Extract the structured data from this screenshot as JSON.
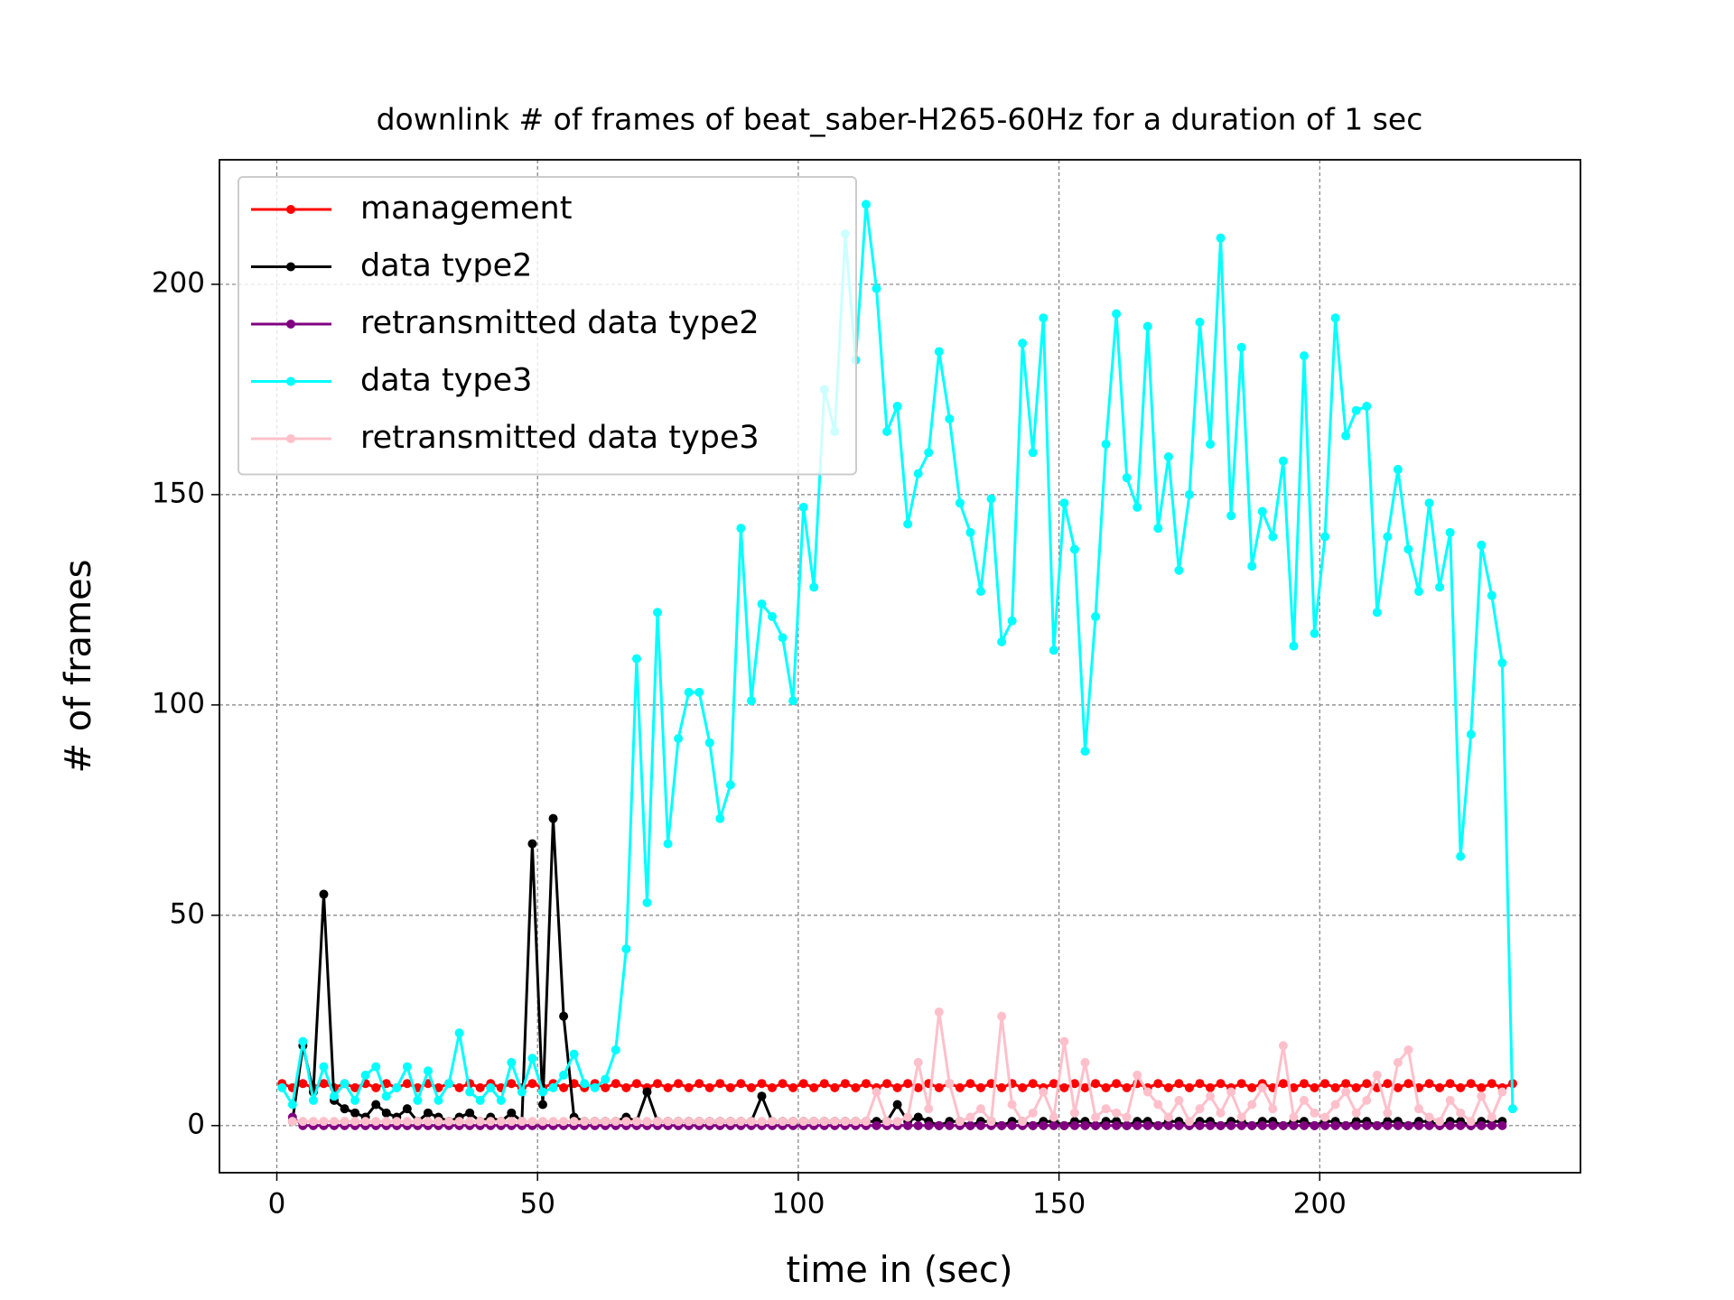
{
  "chart_data": {
    "type": "line",
    "title": "downlink # of frames of beat_saber-H265-60Hz for a duration of 1 sec",
    "xlabel": "time in (sec)",
    "ylabel": "# of frames",
    "xlim": [
      -11,
      250
    ],
    "ylim": [
      -11.2,
      229.6
    ],
    "xticks": [
      0,
      50,
      100,
      150,
      200
    ],
    "yticks": [
      0,
      50,
      100,
      150,
      200
    ],
    "grid": true,
    "legend": "upper left",
    "x": [
      1,
      3,
      5,
      7,
      9,
      11,
      13,
      15,
      17,
      19,
      21,
      23,
      25,
      27,
      29,
      31,
      33,
      35,
      37,
      39,
      41,
      43,
      45,
      47,
      49,
      51,
      53,
      55,
      57,
      59,
      61,
      63,
      65,
      67,
      69,
      71,
      73,
      75,
      77,
      79,
      81,
      83,
      85,
      87,
      89,
      91,
      93,
      95,
      97,
      99,
      101,
      103,
      105,
      107,
      109,
      111,
      113,
      115,
      117,
      119,
      121,
      123,
      125,
      127,
      129,
      131,
      133,
      135,
      137,
      139,
      141,
      143,
      145,
      147,
      149,
      151,
      153,
      155,
      157,
      159,
      161,
      163,
      165,
      167,
      169,
      171,
      173,
      175,
      177,
      179,
      181,
      183,
      185,
      187,
      189,
      191,
      193,
      195,
      197,
      199,
      201,
      203,
      205,
      207,
      209,
      211,
      213,
      215,
      217,
      219,
      221,
      223,
      225,
      227,
      229,
      231,
      233,
      235,
      237
    ],
    "series": [
      {
        "name": "management",
        "color": "#ff0000",
        "values": [
          10,
          9,
          10,
          9,
          10,
          9,
          10,
          9,
          10,
          9,
          10,
          9,
          10,
          9,
          10,
          9,
          10,
          9,
          10,
          9,
          10,
          9,
          10,
          9,
          10,
          9,
          10,
          9,
          10,
          9,
          10,
          9,
          10,
          9,
          10,
          9,
          10,
          9,
          10,
          9,
          10,
          9,
          10,
          9,
          10,
          9,
          10,
          9,
          10,
          9,
          10,
          9,
          10,
          9,
          10,
          9,
          10,
          9,
          10,
          9,
          10,
          9,
          10,
          9,
          10,
          9,
          10,
          9,
          10,
          9,
          10,
          9,
          10,
          9,
          10,
          9,
          10,
          9,
          10,
          9,
          10,
          9,
          10,
          9,
          10,
          9,
          10,
          9,
          10,
          9,
          10,
          9,
          10,
          9,
          10,
          9,
          10,
          9,
          10,
          9,
          10,
          9,
          10,
          9,
          10,
          9,
          10,
          9,
          10,
          9,
          10,
          9,
          10,
          9,
          10,
          9,
          10,
          9,
          10
        ]
      },
      {
        "name": "data type2",
        "color": "#000000",
        "values": [
          null,
          1,
          19,
          8,
          55,
          6,
          4,
          3,
          2,
          5,
          3,
          2,
          4,
          1,
          3,
          2,
          1,
          2,
          3,
          1,
          2,
          1,
          3,
          1,
          67,
          5,
          73,
          26,
          2,
          1,
          1,
          1,
          1,
          2,
          1,
          8,
          1,
          1,
          1,
          1,
          1,
          1,
          1,
          1,
          1,
          1,
          7,
          1,
          1,
          1,
          1,
          1,
          1,
          1,
          1,
          1,
          1,
          1,
          1,
          5,
          1,
          2,
          1,
          0,
          1,
          1,
          0,
          1,
          1,
          0,
          1,
          1,
          0,
          1,
          1,
          0,
          1,
          1,
          0,
          1,
          1,
          0,
          1,
          1,
          0,
          1,
          1,
          0,
          1,
          1,
          0,
          1,
          1,
          0,
          1,
          1,
          0,
          1,
          1,
          0,
          1,
          1,
          0,
          1,
          1,
          0,
          1,
          1,
          0,
          1,
          1,
          0,
          1,
          1,
          0,
          1,
          1,
          1,
          null
        ]
      },
      {
        "name": "retransmitted data type2",
        "color": "#800080",
        "values": [
          null,
          2,
          0,
          0,
          0,
          0,
          0,
          0,
          0,
          0,
          0,
          0,
          0,
          0,
          0,
          0,
          0,
          0,
          0,
          0,
          0,
          0,
          0,
          0,
          0,
          0,
          0,
          0,
          0,
          0,
          0,
          0,
          0,
          0,
          0,
          0,
          0,
          0,
          0,
          0,
          0,
          0,
          0,
          0,
          0,
          0,
          0,
          0,
          0,
          0,
          0,
          0,
          0,
          0,
          0,
          0,
          0,
          0,
          0,
          0,
          0,
          0,
          0,
          0,
          0,
          0,
          0,
          0,
          0,
          0,
          0,
          0,
          0,
          0,
          0,
          0,
          0,
          0,
          0,
          0,
          0,
          0,
          0,
          0,
          0,
          0,
          0,
          0,
          0,
          0,
          0,
          0,
          0,
          0,
          0,
          0,
          0,
          0,
          0,
          0,
          0,
          0,
          0,
          0,
          0,
          0,
          0,
          0,
          0,
          0,
          0,
          0,
          0,
          0,
          0,
          0,
          0,
          0,
          null
        ]
      },
      {
        "name": "data type3",
        "color": "#00ffff",
        "values": [
          9,
          5,
          20,
          6,
          14,
          7,
          10,
          6,
          12,
          14,
          7,
          9,
          14,
          6,
          13,
          6,
          10,
          22,
          8,
          6,
          9,
          6,
          15,
          8,
          16,
          8,
          9,
          12,
          17,
          10,
          9,
          11,
          18,
          42,
          111,
          53,
          122,
          67,
          92,
          103,
          103,
          91,
          73,
          81,
          142,
          101,
          124,
          121,
          116,
          101,
          147,
          128,
          175,
          165,
          212,
          182,
          219,
          199,
          165,
          171,
          143,
          155,
          160,
          184,
          168,
          148,
          141,
          127,
          149,
          115,
          120,
          186,
          160,
          192,
          113,
          148,
          137,
          89,
          121,
          162,
          193,
          154,
          147,
          190,
          142,
          159,
          132,
          150,
          191,
          162,
          211,
          145,
          185,
          133,
          146,
          140,
          158,
          114,
          183,
          117,
          140,
          192,
          164,
          170,
          171,
          122,
          140,
          156,
          137,
          127,
          148,
          128,
          141,
          64,
          93,
          138,
          126,
          110,
          4
        ]
      },
      {
        "name": "retransmitted data type3",
        "color": "#ffc0cb",
        "values": [
          null,
          1,
          1,
          1,
          1,
          1,
          1,
          1,
          1,
          1,
          1,
          1,
          1,
          1,
          1,
          1,
          1,
          1,
          1,
          1,
          1,
          1,
          1,
          1,
          1,
          1,
          1,
          1,
          1,
          1,
          1,
          1,
          1,
          1,
          1,
          1,
          1,
          1,
          1,
          1,
          1,
          1,
          1,
          1,
          1,
          1,
          1,
          1,
          1,
          1,
          1,
          1,
          1,
          1,
          1,
          1,
          1,
          8,
          1,
          1,
          2,
          15,
          4,
          27,
          10,
          1,
          2,
          4,
          1,
          26,
          5,
          1,
          3,
          8,
          2,
          20,
          3,
          15,
          2,
          4,
          3,
          2,
          12,
          8,
          5,
          2,
          6,
          1,
          4,
          7,
          3,
          8,
          2,
          5,
          9,
          4,
          19,
          2,
          6,
          3,
          2,
          5,
          8,
          3,
          6,
          12,
          3,
          15,
          18,
          4,
          2,
          1,
          6,
          3,
          1,
          7,
          2,
          8,
          null
        ]
      }
    ]
  }
}
